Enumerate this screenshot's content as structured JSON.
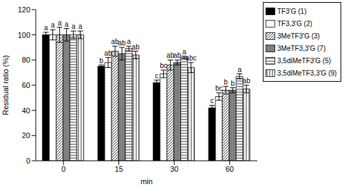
{
  "chart_data": {
    "type": "bar",
    "x_label": "min",
    "y_label": "Residual ratio (%)",
    "categories": [
      "0",
      "15",
      "30",
      "60"
    ],
    "ylim": [
      0,
      120
    ],
    "yticks": [
      0,
      20,
      40,
      60,
      80,
      100,
      120
    ],
    "grid": false,
    "legend": "top-right",
    "series": [
      {
        "name": "TF3'G (1)",
        "color": "#000000",
        "values": [
          100,
          75,
          62,
          42
        ],
        "errors": [
          2,
          1,
          2,
          2
        ],
        "letters": [
          "a",
          "b",
          "c",
          "c"
        ]
      },
      {
        "name": "TF3,3'G (2)",
        "color": "#ffffff",
        "values": [
          100,
          78,
          69,
          51
        ],
        "errors": [
          4,
          4,
          3,
          3
        ],
        "letters": [
          "a",
          "ab",
          "bc",
          "bc"
        ]
      },
      {
        "name": "3MeTF3'G (3)",
        "color": "#ffffff",
        "values": [
          100,
          87,
          76,
          56
        ],
        "errors": [
          6,
          4,
          4,
          3
        ],
        "letters": [
          "a",
          "ab",
          "ab",
          "b"
        ]
      },
      {
        "name": "3MeTF3,3'G (7)",
        "color": "#808080",
        "values": [
          100,
          85,
          78,
          56
        ],
        "errors": [
          5,
          5,
          2,
          2
        ],
        "letters": [
          "a",
          "ab",
          "ab",
          "b"
        ]
      },
      {
        "name": "3,5diMeTF3'G (5)",
        "color": "#ffffff",
        "values": [
          100,
          89,
          82,
          67
        ],
        "errors": [
          3,
          2,
          1,
          2
        ],
        "letters": [
          "a",
          "a",
          "a",
          "a"
        ]
      },
      {
        "name": "3,5diMeTF3,3'G (9)",
        "color": "#ffffff",
        "values": [
          100,
          84,
          74,
          57
        ],
        "errors": [
          3,
          3,
          4,
          3
        ],
        "letters": [
          "a",
          "ab",
          "abc",
          "ab"
        ]
      }
    ]
  }
}
